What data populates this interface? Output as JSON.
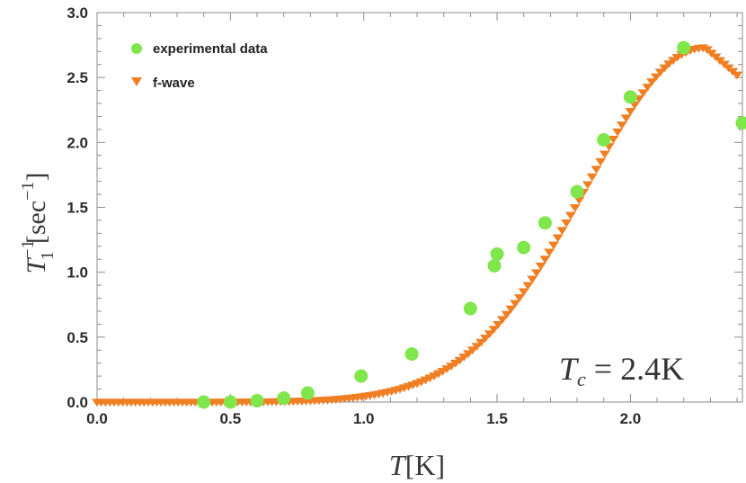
{
  "chart_data": {
    "type": "scatter",
    "title": "",
    "xlabel": "T[K]",
    "ylabel": "T1^-1[sec^-1]",
    "xlim": [
      0.0,
      2.42
    ],
    "ylim": [
      0.0,
      3.0
    ],
    "x_ticks": [
      "0.0",
      "0.5",
      "1.0",
      "1.5",
      "2.0"
    ],
    "y_ticks": [
      "0.0",
      "0.5",
      "1.0",
      "1.5",
      "2.0",
      "2.5",
      "3.0"
    ],
    "grid": false,
    "legend_position": "top-left",
    "annotation": {
      "symbol": "T",
      "subscript": "c",
      "rest": " = 2.4K"
    },
    "series": [
      {
        "name": "experimental data",
        "marker": "circle",
        "color": "#7fe64b",
        "x": [
          0.4,
          0.5,
          0.6,
          0.7,
          0.79,
          0.99,
          1.18,
          1.4,
          1.49,
          1.5,
          1.6,
          1.68,
          1.8,
          1.9,
          2.0,
          2.2,
          2.42
        ],
        "y": [
          0.0,
          0.0,
          0.01,
          0.03,
          0.07,
          0.2,
          0.37,
          0.72,
          1.05,
          1.14,
          1.19,
          1.38,
          1.62,
          2.02,
          2.35,
          2.73,
          2.15
        ]
      },
      {
        "name": "f-wave",
        "marker": "triangle-down",
        "color": "#f07f24",
        "x_start": 0.0,
        "x_end": 2.4,
        "count": 150,
        "peak_x": 2.28,
        "peak_y": 2.73,
        "end_y": 2.52
      }
    ],
    "series_colors": {
      "experimental": "#7fe64b",
      "fwave": "#f07f24",
      "axis": "#8c8c8c"
    }
  }
}
